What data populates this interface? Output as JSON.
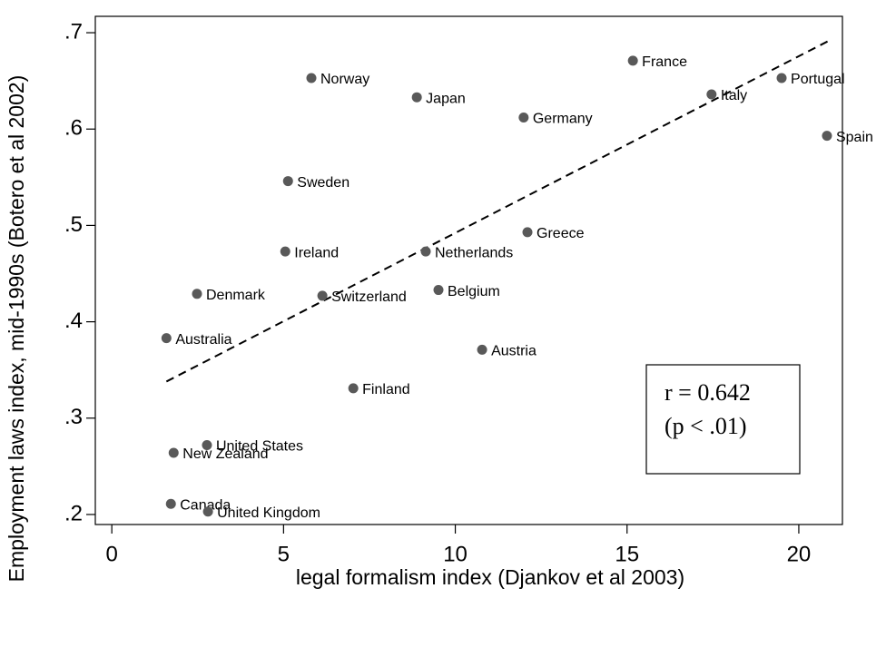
{
  "chart_data": {
    "type": "scatter",
    "x_label": "legal formalism index (Djankov et al 2003)",
    "y_label": "Employment laws index, mid-1990s (Botero et al 2002)",
    "labels": [
      "Norway",
      "France",
      "Portugal",
      "Italy",
      "Japan",
      "Germany",
      "Spain",
      "Sweden",
      "Greece",
      "Ireland",
      "Netherlands",
      "Belgium",
      "Denmark",
      "Switzerland",
      "Australia",
      "Austria",
      "Finland",
      "United States",
      "New Zealand",
      "Canada",
      "United Kingdom"
    ],
    "x": [
      5.81,
      15.17,
      19.5,
      17.46,
      8.88,
      11.99,
      20.82,
      5.13,
      12.1,
      5.05,
      9.14,
      9.51,
      2.48,
      6.13,
      1.59,
      10.78,
      7.03,
      2.77,
      1.8,
      1.72,
      2.8
    ],
    "y": [
      0.653,
      0.671,
      0.653,
      0.636,
      0.633,
      0.612,
      0.593,
      0.546,
      0.493,
      0.473,
      0.473,
      0.433,
      0.429,
      0.427,
      0.383,
      0.371,
      0.331,
      0.272,
      0.264,
      0.211,
      0.203
    ],
    "color": "#595959",
    "fit_line": {
      "x": [
        1.59,
        20.84
      ],
      "y": [
        0.338,
        0.691
      ]
    },
    "annotation": [
      "r = 0.642",
      "(p < .01)"
    ],
    "xlim": [
      -0.48,
      21.27
    ],
    "ylim": [
      0.1896,
      0.717
    ],
    "xticks": [
      0,
      5,
      10,
      15,
      20
    ],
    "yticks": [
      {
        "value": 0.2,
        "label": ".2"
      },
      {
        "value": 0.3,
        "label": ".3"
      },
      {
        "value": 0.4,
        "label": ".4"
      },
      {
        "value": 0.5,
        "label": ".5"
      },
      {
        "value": 0.6,
        "label": ".6"
      },
      {
        "value": 0.7,
        "label": ".7"
      }
    ]
  }
}
